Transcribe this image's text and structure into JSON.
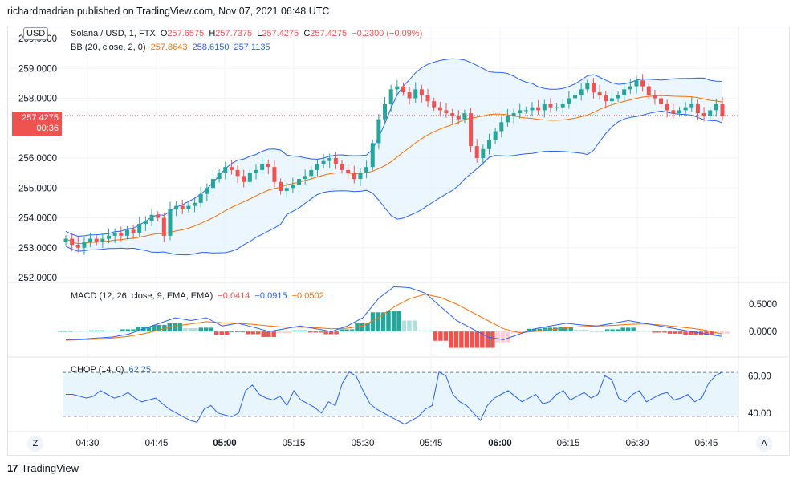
{
  "caption": "richardmadrian published on TradingView.com, Nov 07, 2021 06:48 UTC",
  "footer": {
    "brand": "TradingView"
  },
  "currency_badge": "USD",
  "price_tag": {
    "price": "257.4275",
    "countdown": "00:36"
  },
  "buttons": {
    "z": "Z",
    "a": "A"
  },
  "main_legend": {
    "symbol": "Solana / USD, 1, FTX",
    "o_label": "O",
    "o": "257.6575",
    "h_label": "H",
    "h": "257.7375",
    "l_label": "L",
    "l": "257.4275",
    "c_label": "C",
    "c": "257.4275",
    "change": "−0.2300 (−0.09%)",
    "bb_label": "BB (20, close, 2, 0)",
    "bb_basis": "257.8643",
    "bb_upper": "258.6150",
    "bb_lower": "257.1135"
  },
  "macd_legend": {
    "label": "MACD (12, 26, close, 9, EMA, EMA)",
    "hist": "−0.0414",
    "macd": "−0.0915",
    "signal": "−0.0502"
  },
  "chop_legend": {
    "label": "CHOP (14, 0)",
    "value": "62.25"
  },
  "colors": {
    "up": "#26a69a",
    "down": "#ef5350",
    "bb_basis": "#ff6d00",
    "bb_band": "#2962ff",
    "bb_fill": "#e3f2fd",
    "macd": "#2962ff",
    "signal": "#ff6d00",
    "hist_up_strong": "#26a69a",
    "hist_up_weak": "#b2dfdb",
    "hist_down_strong": "#ef5350",
    "hist_down_weak": "#ffcdd2",
    "chop": "#2962ff"
  },
  "chart_data": [
    {
      "type": "candlestick",
      "title": "Solana / USD, 1, FTX",
      "ylim": [
        252,
        260
      ],
      "y_ticks": [
        "260.0000",
        "259.0000",
        "258.0000",
        "256.0000",
        "255.0000",
        "254.0000",
        "253.0000",
        "252.0000"
      ],
      "x_ticks": [
        "04:30",
        "04:45",
        "05:00",
        "05:15",
        "05:30",
        "05:45",
        "06:00",
        "06:15",
        "06:30",
        "06:45"
      ],
      "last_price": 257.4275,
      "close_path": [
        253.3,
        253.1,
        253.0,
        253.2,
        253.3,
        253.2,
        253.3,
        253.4,
        253.5,
        253.4,
        253.6,
        253.5,
        253.8,
        253.9,
        254.1,
        254.0,
        253.4,
        254.3,
        254.4,
        254.3,
        254.4,
        254.5,
        254.8,
        255.0,
        255.3,
        255.5,
        255.7,
        255.6,
        255.4,
        255.2,
        255.5,
        255.6,
        255.8,
        255.7,
        255.2,
        254.9,
        255.0,
        255.1,
        255.3,
        255.4,
        255.6,
        255.8,
        255.9,
        256.0,
        255.8,
        255.6,
        255.5,
        255.3,
        255.5,
        255.7,
        256.5,
        257.3,
        257.8,
        258.3,
        258.4,
        258.2,
        258.0,
        258.3,
        258.1,
        257.9,
        257.7,
        257.6,
        257.5,
        257.4,
        257.3,
        257.5,
        256.4,
        256.0,
        256.3,
        256.6,
        256.9,
        257.2,
        257.4,
        257.5,
        257.6,
        257.6,
        257.7,
        257.6,
        257.8,
        257.7,
        257.7,
        257.8,
        258.0,
        258.1,
        258.3,
        258.5,
        258.2,
        258.1,
        257.9,
        258.0,
        258.1,
        258.3,
        258.4,
        258.6,
        258.4,
        258.1,
        258.0,
        257.8,
        257.6,
        257.5,
        257.6,
        257.7,
        257.8,
        257.5,
        257.4,
        257.6,
        257.8,
        257.4
      ]
    },
    {
      "type": "line",
      "title": "MACD (12, 26, close, 9, EMA, EMA)",
      "y_ticks": [
        "0.5000",
        "0.0000"
      ],
      "ylim": [
        -0.35,
        0.75
      ],
      "macd": [
        -0.15,
        -0.14,
        -0.12,
        -0.1,
        -0.05,
        0.05,
        0.15,
        0.25,
        0.2,
        0.25,
        0.1,
        0.15,
        0.08,
        0.0,
        0.05,
        0.1,
        0.05,
        0.0,
        0.1,
        0.25,
        0.6,
        0.82,
        0.8,
        0.7,
        0.45,
        0.2,
        0.05,
        -0.1,
        -0.15,
        -0.05,
        0.05,
        0.1,
        0.15,
        0.12,
        0.1,
        0.15,
        0.2,
        0.15,
        0.1,
        0.05,
        0.0,
        -0.05,
        -0.09
      ],
      "signal": [
        -0.16,
        -0.15,
        -0.14,
        -0.12,
        -0.09,
        -0.04,
        0.03,
        0.1,
        0.14,
        0.18,
        0.16,
        0.15,
        0.13,
        0.1,
        0.08,
        0.08,
        0.07,
        0.05,
        0.06,
        0.1,
        0.25,
        0.45,
        0.6,
        0.68,
        0.62,
        0.5,
        0.35,
        0.2,
        0.05,
        -0.02,
        0.0,
        0.03,
        0.07,
        0.09,
        0.1,
        0.11,
        0.13,
        0.14,
        0.12,
        0.09,
        0.06,
        0.02,
        -0.05
      ]
    },
    {
      "type": "line",
      "title": "CHOP (14, 0)",
      "y_ticks": [
        "60.00",
        "40.00"
      ],
      "ylim": [
        30,
        70
      ],
      "levels": [
        61.8,
        38.2
      ],
      "values": [
        50,
        50,
        49,
        48,
        49,
        52,
        50,
        48,
        49,
        51,
        48,
        46,
        47,
        48,
        45,
        42,
        40,
        38,
        36,
        35,
        42,
        44,
        40,
        39,
        38,
        40,
        52,
        55,
        50,
        48,
        47,
        49,
        44,
        52,
        47,
        45,
        43,
        40,
        46,
        44,
        56,
        62,
        60,
        52,
        45,
        42,
        40,
        38,
        36,
        34,
        36,
        38,
        42,
        44,
        62,
        60,
        50,
        46,
        44,
        40,
        36,
        44,
        48,
        50,
        52,
        49,
        46,
        48,
        50,
        45,
        46,
        50,
        52,
        47,
        49,
        51,
        48,
        50,
        60,
        58,
        48,
        46,
        50,
        52,
        46,
        48,
        50,
        51,
        47,
        48,
        50,
        46,
        48,
        56,
        60,
        62
      ]
    }
  ]
}
